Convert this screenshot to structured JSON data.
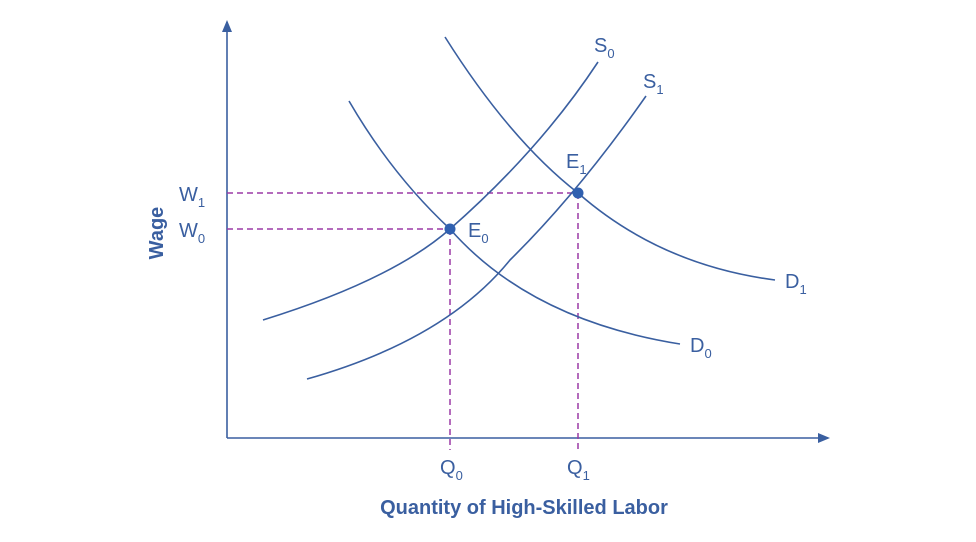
{
  "axes": {
    "x_title": "Quantity of High-Skilled Labor",
    "y_title": "Wage"
  },
  "curves": {
    "s0": {
      "main": "S",
      "sub": "0"
    },
    "s1": {
      "main": "S",
      "sub": "1"
    },
    "d0": {
      "main": "D",
      "sub": "0"
    },
    "d1": {
      "main": "D",
      "sub": "1"
    }
  },
  "points": {
    "e0": {
      "main": "E",
      "sub": "0"
    },
    "e1": {
      "main": "E",
      "sub": "1"
    }
  },
  "wage_ticks": {
    "w1": {
      "main": "W",
      "sub": "1"
    },
    "w0": {
      "main": "W",
      "sub": "0"
    }
  },
  "quantity_ticks": {
    "q0": {
      "main": "Q",
      "sub": "0"
    },
    "q1": {
      "main": "Q",
      "sub": "1"
    }
  },
  "colors": {
    "curve": "#3a5fa0",
    "axis": "#3a5fa0",
    "guide": "#9b3aa6",
    "point": "#3060b0"
  }
}
